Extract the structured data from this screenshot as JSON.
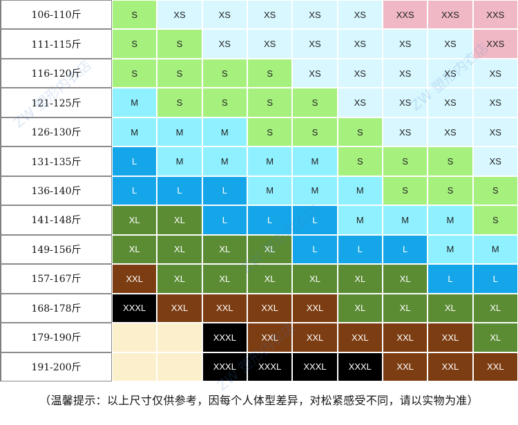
{
  "colors": {
    "XXS": "#f0b8c4",
    "XS": "#d8f7ff",
    "S": "#a6f07e",
    "M": "#8ff0ff",
    "L": "#14a6e8",
    "XL": "#5b8c34",
    "XXL": "#7d3d12",
    "XXXL": "#000000",
    "EMPTY": "#fcefcb"
  },
  "rows": [
    {
      "label": "106-110斤",
      "sizes": [
        "S",
        "XS",
        "XS",
        "XS",
        "XS",
        "XS",
        "XXS",
        "XXS",
        "XXS"
      ]
    },
    {
      "label": "111-115斤",
      "sizes": [
        "S",
        "S",
        "XS",
        "XS",
        "XS",
        "XS",
        "XS",
        "XS",
        "XXS"
      ]
    },
    {
      "label": "116-120斤",
      "sizes": [
        "S",
        "S",
        "S",
        "S",
        "XS",
        "XS",
        "XS",
        "XS",
        "XS"
      ]
    },
    {
      "label": "121-125斤",
      "sizes": [
        "M",
        "S",
        "S",
        "S",
        "S",
        "XS",
        "XS",
        "XS",
        "XS"
      ]
    },
    {
      "label": "126-130斤",
      "sizes": [
        "M",
        "M",
        "M",
        "S",
        "S",
        "S",
        "XS",
        "XS",
        "XS"
      ]
    },
    {
      "label": "131-135斤",
      "sizes": [
        "L",
        "M",
        "M",
        "M",
        "M",
        "S",
        "S",
        "S",
        "XS"
      ]
    },
    {
      "label": "136-140斤",
      "sizes": [
        "L",
        "L",
        "L",
        "M",
        "M",
        "M",
        "S",
        "S",
        "S"
      ]
    },
    {
      "label": "141-148斤",
      "sizes": [
        "XL",
        "XL",
        "L",
        "L",
        "L",
        "M",
        "M",
        "M",
        "S"
      ]
    },
    {
      "label": "149-156斤",
      "sizes": [
        "XL",
        "XL",
        "XL",
        "XL",
        "L",
        "L",
        "L",
        "M",
        "M"
      ]
    },
    {
      "label": "157-167斤",
      "sizes": [
        "XXL",
        "XL",
        "XL",
        "XL",
        "XL",
        "XL",
        "XL",
        "L",
        "L"
      ]
    },
    {
      "label": "168-178斤",
      "sizes": [
        "XXXL",
        "XXL",
        "XXL",
        "XXL",
        "XXL",
        "XL",
        "XL",
        "XL",
        "XL"
      ]
    },
    {
      "label": "179-190斤",
      "sizes": [
        "",
        "",
        "XXXL",
        "XXL",
        "XXL",
        "XXL",
        "XXL",
        "XXL",
        "XL"
      ]
    },
    {
      "label": "191-200斤",
      "sizes": [
        "",
        "",
        "XXXL",
        "XXXL",
        "XXXL",
        "XXXL",
        "XXL",
        "XXL",
        "XXL"
      ]
    }
  ],
  "note": "（温馨提示：以上尺寸仅供参考，因每个人体型差异，对松紧感受不同，请以实物为准）",
  "watermark": "ZW 塑形内衣店"
}
